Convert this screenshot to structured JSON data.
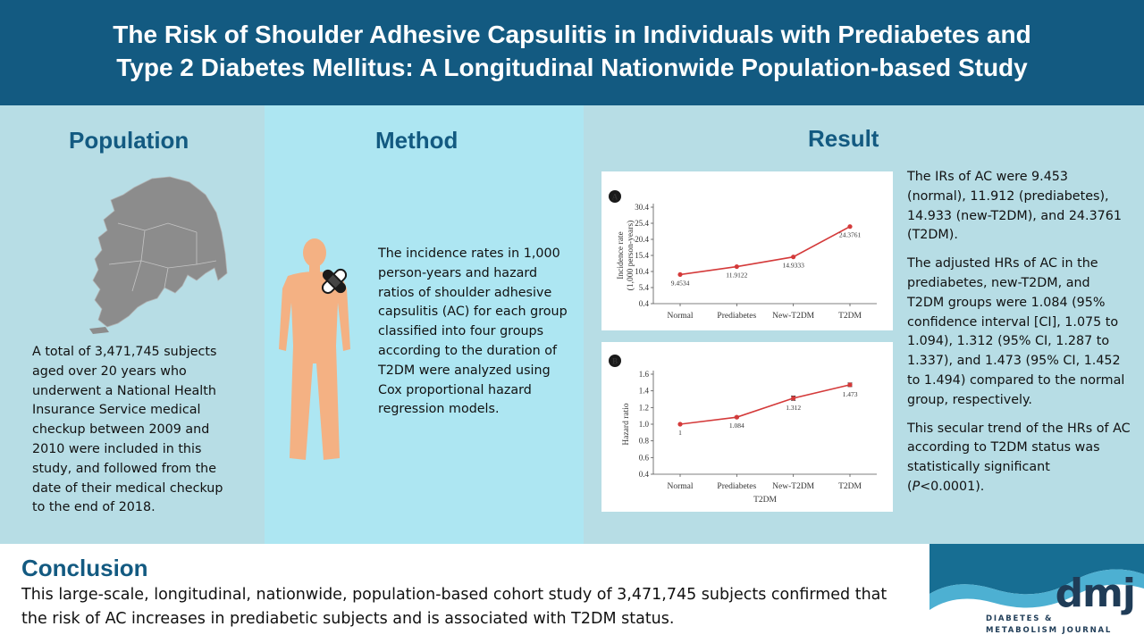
{
  "header": {
    "title": "The Risk of Shoulder Adhesive Capsulitis in Individuals with Prediabetes and\nType 2 Diabetes Mellitus: A Longitudinal Nationwide Population-based Study"
  },
  "population": {
    "title": "Population",
    "text": "A total of 3,471,745 subjects aged over 20 years who underwent a National Health Insurance Service medical checkup between 2009 and 2010 were included in this study, and followed from the date of their medical checkup to the end of 2018."
  },
  "method": {
    "title": "Method",
    "text": "The incidence rates in 1,000 person-years and hazard ratios of shoulder adhesive capsulitis (AC) for each group classified into four groups according to the duration of T2DM were analyzed using Cox proportional hazard regression models."
  },
  "result": {
    "title": "Result",
    "p1": "The IRs of AC were 9.453 (normal), 11.912 (prediabetes), 14.933 (new-T2DM), and 24.3761 (T2DM).",
    "p2": "The adjusted HRs of AC in the prediabetes, new-T2DM, and T2DM groups were 1.084 (95% confidence interval [CI], 1.075 to 1.094), 1.312 (95% CI, 1.287 to 1.337), and 1.473 (95% CI, 1.452 to 1.494) compared to the normal group, respectively.",
    "p3_pre": "This secular trend of the HRs of AC according to T2DM status was statistically significant (",
    "p3_italic": "P",
    "p3_post": "<0.0001)."
  },
  "chart_data": [
    {
      "type": "line",
      "panel": "A",
      "ylabel": "Incidence rate\n(1,000 person-years)",
      "xlabel": "",
      "categories": [
        "Normal",
        "Prediabetes",
        "New-T2DM",
        "T2DM"
      ],
      "values": [
        9.4534,
        11.9122,
        14.9333,
        24.3761
      ],
      "value_labels": [
        "9.4534",
        "11.9122",
        "14.9333",
        "24.3761"
      ],
      "yticks": [
        "0.4",
        "5.4",
        "10.4",
        "15.4",
        "20.4",
        "25.4",
        "30.4"
      ],
      "ylim": [
        0.4,
        30.4
      ],
      "color": "#d43a3a"
    },
    {
      "type": "line",
      "panel": "B",
      "ylabel": "Hazard ratio",
      "xlabel": "T2DM",
      "categories": [
        "Normal",
        "Prediabetes",
        "New-T2DM",
        "T2DM"
      ],
      "values": [
        1.0,
        1.084,
        1.312,
        1.473
      ],
      "value_labels": [
        "1",
        "1.084",
        "1.312",
        "1.473"
      ],
      "ci_low": [
        1.0,
        1.075,
        1.287,
        1.452
      ],
      "ci_high": [
        1.0,
        1.094,
        1.337,
        1.494
      ],
      "yticks": [
        "0.4",
        "0.6",
        "0.8",
        "1.0",
        "1.2",
        "1.4",
        "1.6"
      ],
      "ylim": [
        0.4,
        1.6
      ],
      "color": "#d43a3a"
    }
  ],
  "conclusion": {
    "title": "Conclusion",
    "text": "This large-scale, longitudinal, nationwide, population-based cohort study of 3,471,745 subjects confirmed that the risk of AC increases in prediabetic subjects and is associated with T2DM status."
  },
  "journal": {
    "mark": "dmj",
    "name": "DIABETES &\nMETABOLISM JOURNAL",
    "colors": {
      "wave_dark": "#176e93",
      "wave_light": "#4db0d2"
    }
  }
}
